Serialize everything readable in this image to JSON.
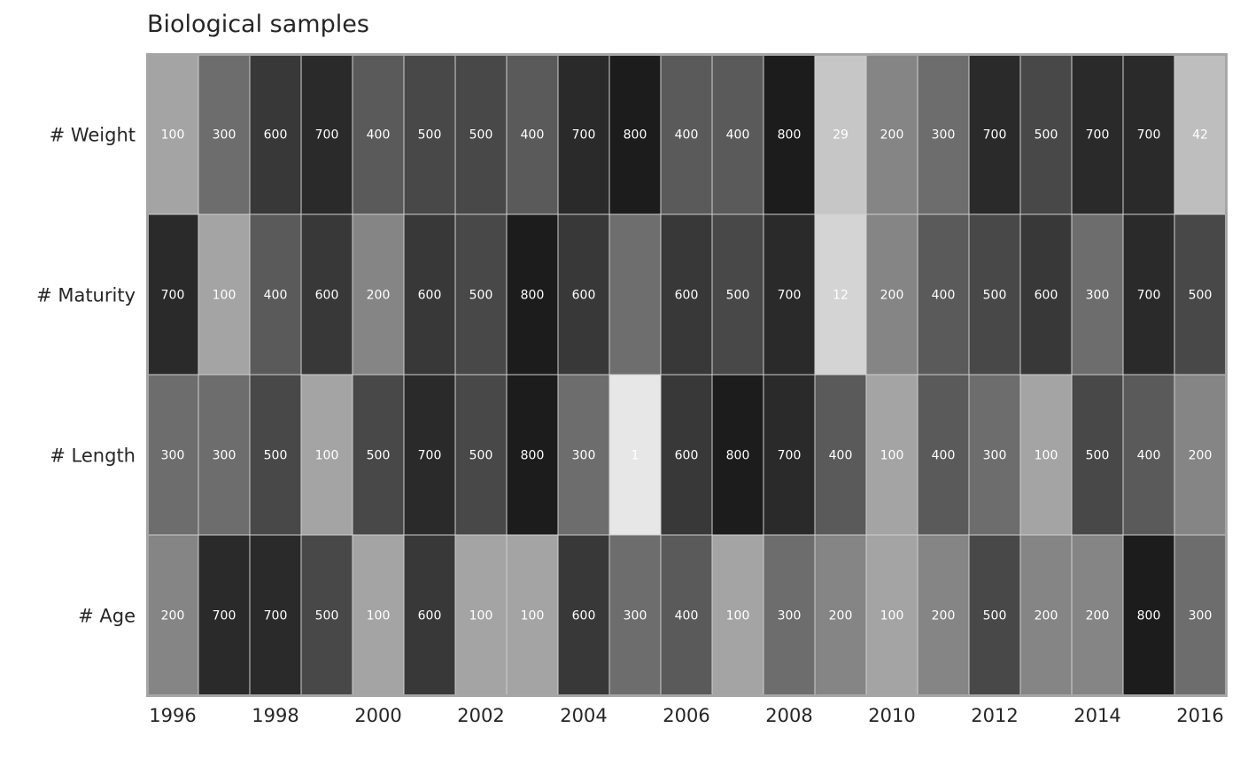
{
  "chart_data": {
    "type": "heatmap",
    "title": "Biological samples",
    "xlabel": "",
    "ylabel": "",
    "x": [
      "1996",
      "1997",
      "1998",
      "1999",
      "2000",
      "2001",
      "2002",
      "2003",
      "2004",
      "2005",
      "2006",
      "2007",
      "2008",
      "2009",
      "2010",
      "2011",
      "2012",
      "2013",
      "2014",
      "2015",
      "2016"
    ],
    "x_tick_labels": [
      "1996",
      "1998",
      "2000",
      "2002",
      "2004",
      "2006",
      "2008",
      "2010",
      "2012",
      "2014",
      "2016"
    ],
    "rows": [
      "# Weight",
      "# Maturity",
      "# Length",
      "# Age"
    ],
    "values": [
      [
        100,
        300,
        600,
        700,
        400,
        500,
        500,
        400,
        700,
        800,
        400,
        400,
        800,
        29,
        200,
        300,
        700,
        500,
        700,
        700,
        42
      ],
      [
        700,
        100,
        400,
        600,
        200,
        600,
        500,
        800,
        600,
        null,
        600,
        500,
        700,
        12,
        200,
        400,
        500,
        600,
        300,
        700,
        500
      ],
      [
        300,
        300,
        500,
        100,
        500,
        700,
        500,
        800,
        300,
        1,
        600,
        800,
        700,
        400,
        100,
        400,
        300,
        100,
        500,
        400,
        200
      ],
      [
        200,
        700,
        700,
        500,
        100,
        600,
        100,
        100,
        600,
        300,
        400,
        100,
        300,
        200,
        100,
        200,
        500,
        200,
        200,
        800,
        300
      ]
    ],
    "colormap": "greys",
    "grid": false,
    "legend": "none"
  }
}
